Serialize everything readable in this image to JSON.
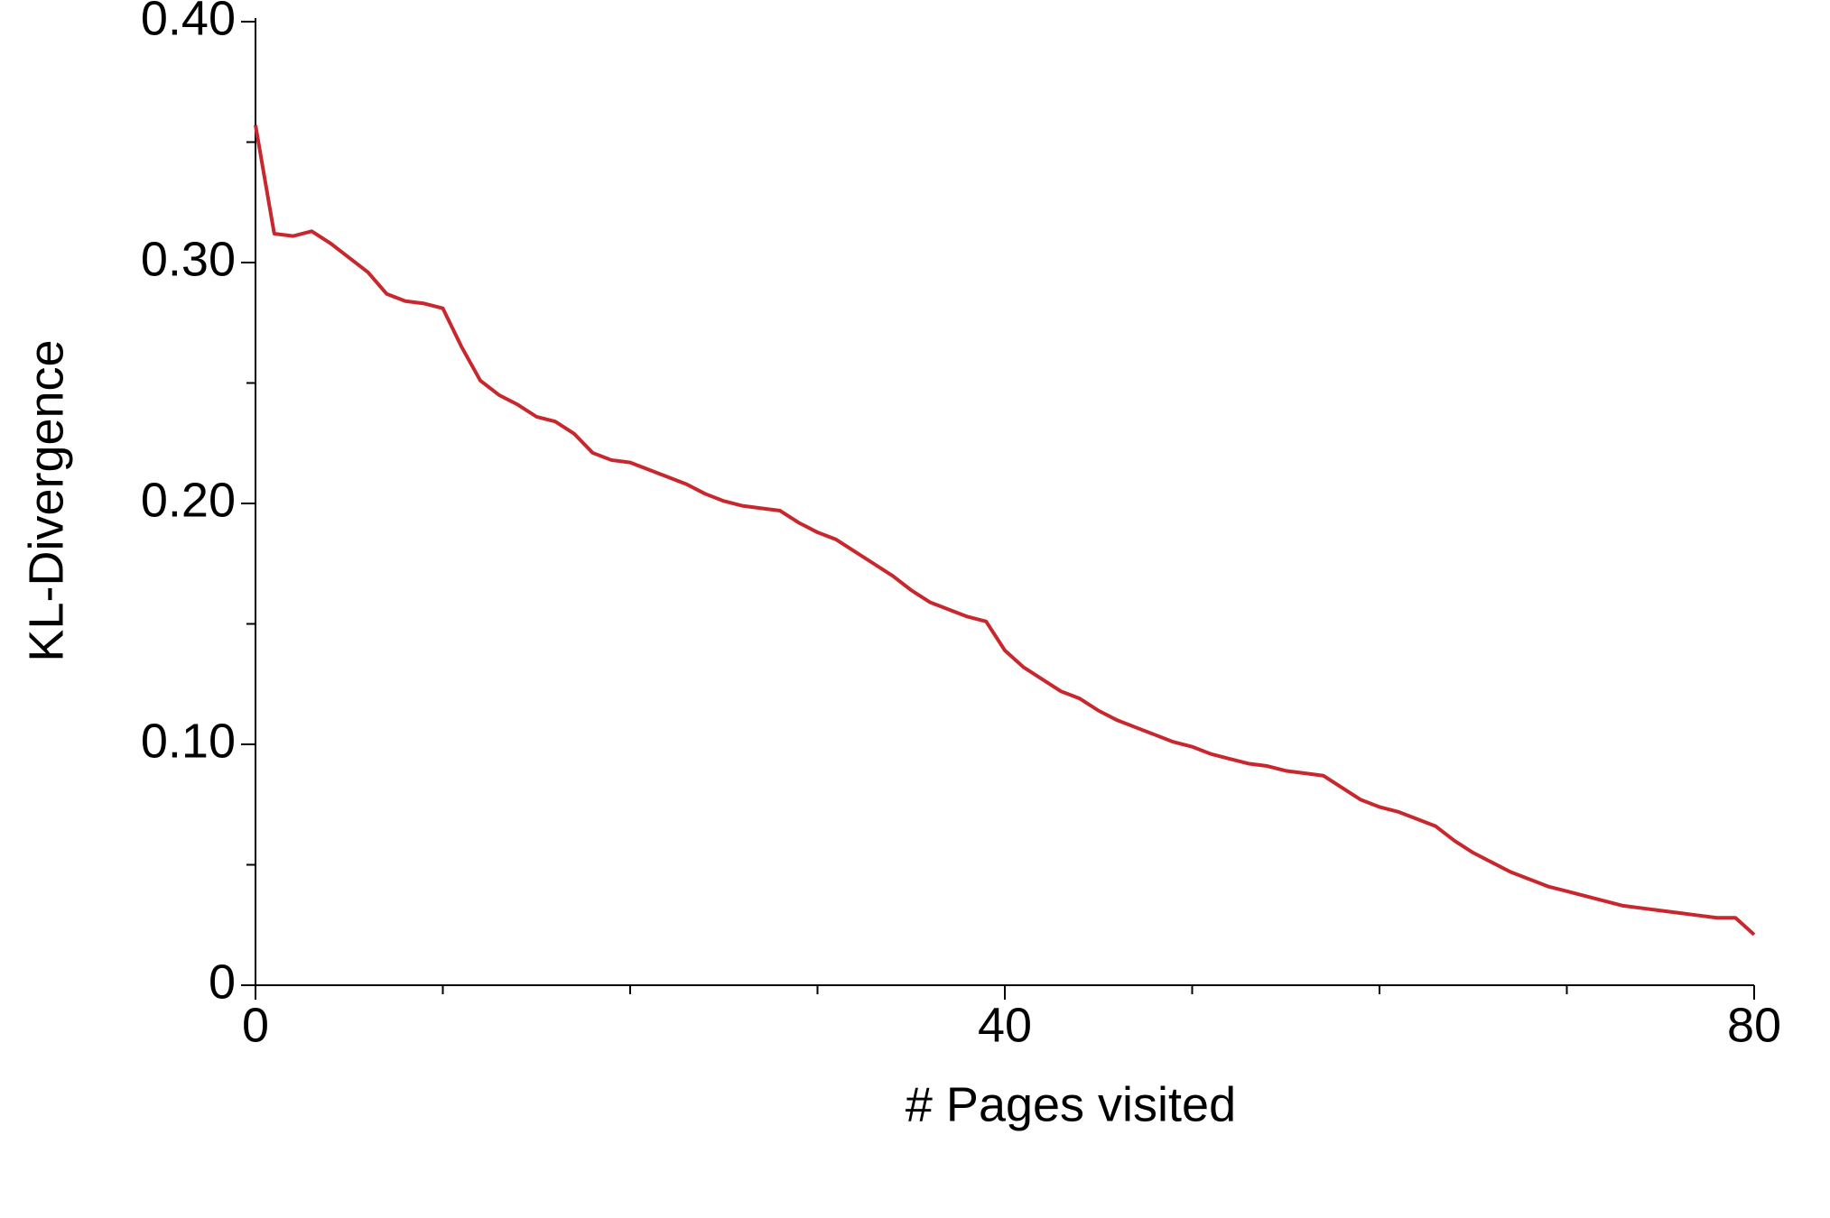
{
  "chart_data": {
    "type": "line",
    "x_label": "# Pages visited",
    "y_label": "KL-Divergence",
    "x": [
      0,
      1,
      2,
      3,
      4,
      5,
      6,
      7,
      8,
      9,
      10,
      11,
      12,
      13,
      14,
      15,
      16,
      17,
      18,
      19,
      20,
      21,
      22,
      23,
      24,
      25,
      26,
      27,
      28,
      29,
      30,
      31,
      32,
      33,
      34,
      35,
      36,
      37,
      38,
      39,
      40,
      41,
      42,
      43,
      44,
      45,
      46,
      47,
      48,
      49,
      50,
      51,
      52,
      53,
      54,
      55,
      56,
      57,
      58,
      59,
      60,
      61,
      62,
      63,
      64,
      65,
      66,
      67,
      68,
      69,
      70,
      71,
      72,
      73,
      74,
      75,
      76,
      77,
      78,
      79,
      80
    ],
    "series": [
      {
        "color": "#c8282d",
        "values": [
          0.357,
          0.312,
          0.311,
          0.313,
          0.308,
          0.302,
          0.296,
          0.287,
          0.284,
          0.283,
          0.281,
          0.265,
          0.251,
          0.245,
          0.241,
          0.236,
          0.234,
          0.229,
          0.221,
          0.218,
          0.217,
          0.214,
          0.211,
          0.208,
          0.204,
          0.201,
          0.199,
          0.198,
          0.197,
          0.192,
          0.188,
          0.185,
          0.18,
          0.175,
          0.17,
          0.164,
          0.159,
          0.156,
          0.153,
          0.151,
          0.139,
          0.132,
          0.127,
          0.122,
          0.119,
          0.114,
          0.11,
          0.107,
          0.104,
          0.101,
          0.099,
          0.096,
          0.094,
          0.092,
          0.091,
          0.089,
          0.088,
          0.087,
          0.082,
          0.077,
          0.074,
          0.072,
          0.069,
          0.066,
          0.06,
          0.055,
          0.051,
          0.047,
          0.044,
          0.041,
          0.039,
          0.037,
          0.035,
          0.033,
          0.032,
          0.031,
          0.03,
          0.029,
          0.028,
          0.028,
          0.021
        ]
      }
    ],
    "xlim": [
      0,
      80
    ],
    "ylim": [
      0,
      0.4
    ],
    "xticks": [
      0,
      40,
      80
    ],
    "yticks": [
      0,
      {
        "value": 0.1,
        "label": "0.10"
      },
      {
        "value": 0.2,
        "label": "0.20"
      },
      {
        "value": 0.3,
        "label": "0.30"
      },
      {
        "value": 0.4,
        "label": "0.40"
      }
    ],
    "xminorticks": [
      10,
      20,
      30,
      50,
      60,
      70
    ],
    "yminorticks": [
      0.05,
      0.15,
      0.25,
      0.35
    ]
  }
}
